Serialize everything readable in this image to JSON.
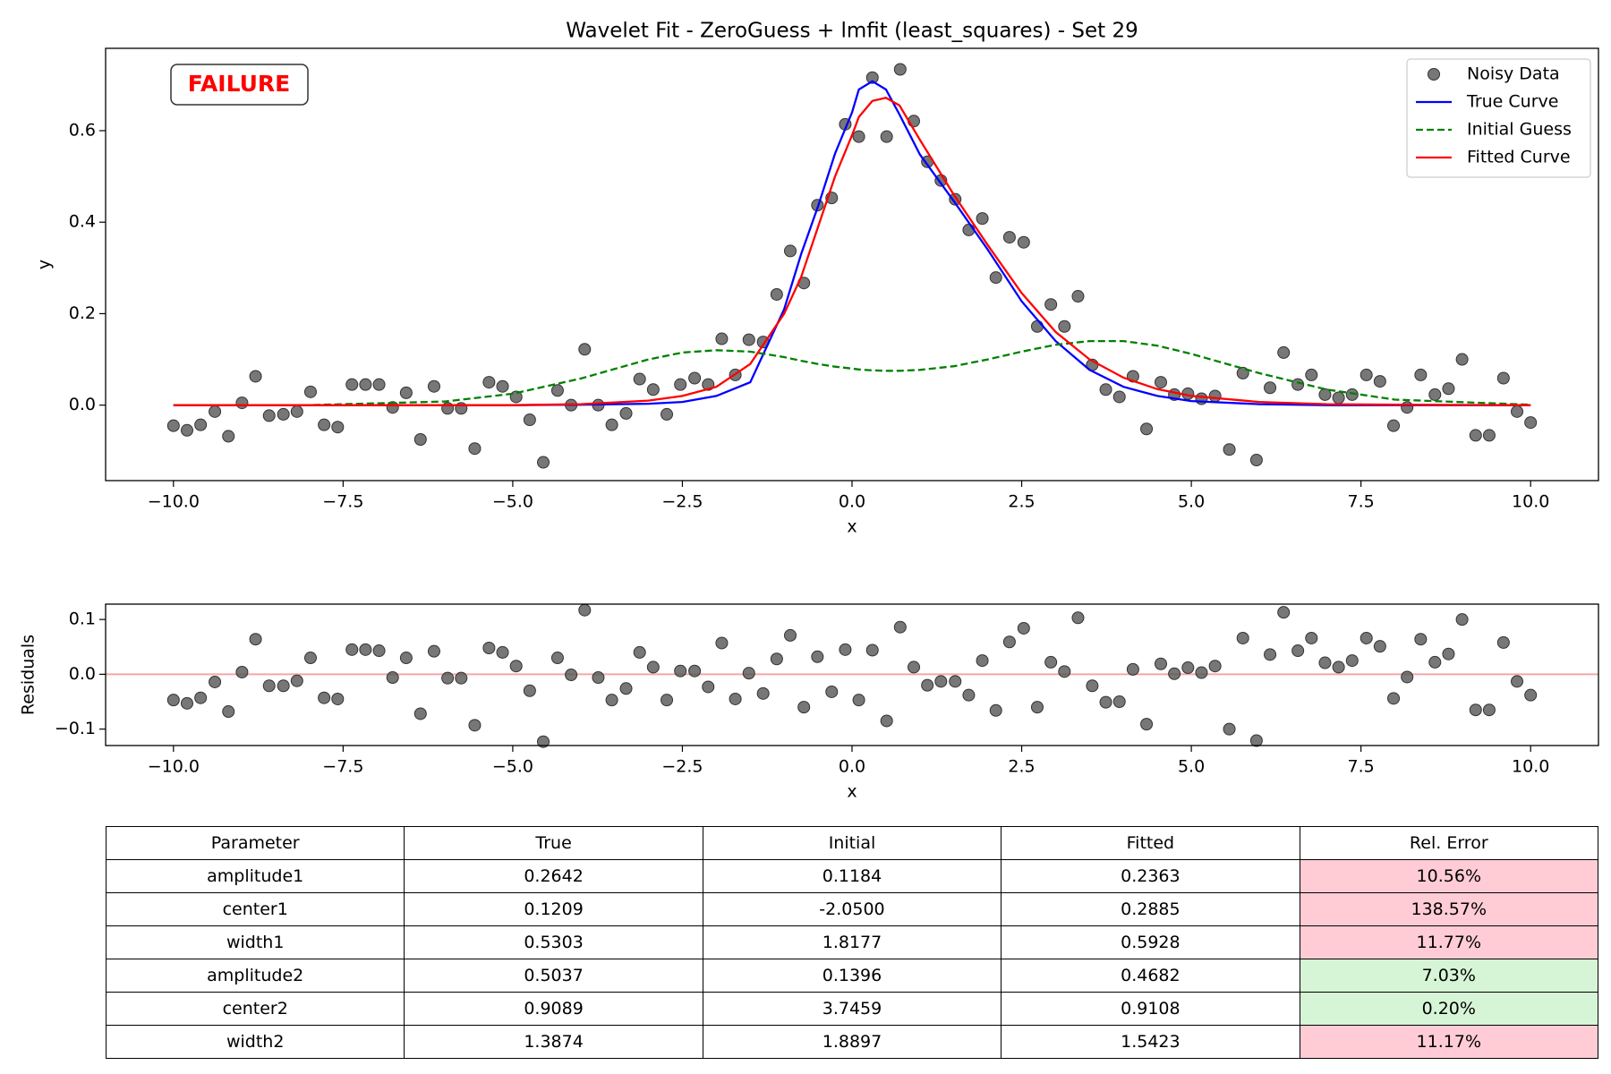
{
  "chart_data": [
    {
      "type": "line",
      "title": "Wavelet Fit - ZeroGuess + lmfit (least_squares) - Set 29",
      "xlabel": "x",
      "ylabel": "y",
      "annotation": {
        "text": "FAILURE",
        "color": "#ff0000"
      },
      "legend": "upper right",
      "xlim": [
        -11,
        11
      ],
      "ylim": [
        -0.165,
        0.78
      ],
      "xticks": [
        {
          "value": -10,
          "label": "−10.0"
        },
        {
          "value": -7.5,
          "label": "−7.5"
        },
        {
          "value": -5,
          "label": "−5.0"
        },
        {
          "value": -2.5,
          "label": "−2.5"
        },
        {
          "value": 0,
          "label": "0.0"
        },
        2.5,
        {
          "value": 5,
          "label": "5.0"
        },
        7.5,
        {
          "value": 10,
          "label": "10.0"
        }
      ],
      "yticks": [
        {
          "value": 0,
          "label": "0.0"
        },
        {
          "value": 0.2,
          "label": "0.2"
        },
        {
          "value": 0.4,
          "label": "0.4"
        },
        {
          "value": 0.6,
          "label": "0.6"
        }
      ],
      "series": [
        {
          "name": "Noisy Data",
          "type": "scatter",
          "color": "#555555",
          "x": [
            -10.0,
            -9.8,
            -9.6,
            -9.39,
            -9.19,
            -8.99,
            -8.79,
            -8.59,
            -8.38,
            -8.18,
            -7.98,
            -7.78,
            -7.58,
            -7.37,
            -7.17,
            -6.97,
            -6.77,
            -6.57,
            -6.36,
            -6.16,
            -5.96,
            -5.76,
            -5.56,
            -5.35,
            -5.15,
            -4.95,
            -4.75,
            -4.55,
            -4.34,
            -4.14,
            -3.94,
            -3.74,
            -3.54,
            -3.33,
            -3.13,
            -2.93,
            -2.73,
            -2.53,
            -2.32,
            -2.12,
            -1.92,
            -1.72,
            -1.52,
            -1.31,
            -1.11,
            -0.91,
            -0.71,
            -0.51,
            -0.3,
            -0.1,
            0.1,
            0.3,
            0.51,
            0.71,
            0.91,
            1.11,
            1.31,
            1.52,
            1.72,
            1.92,
            2.12,
            2.32,
            2.53,
            2.73,
            2.93,
            3.13,
            3.33,
            3.54,
            3.74,
            3.94,
            4.14,
            4.34,
            4.55,
            4.75,
            4.95,
            5.15,
            5.35,
            5.56,
            5.76,
            5.96,
            6.16,
            6.36,
            6.57,
            6.77,
            6.97,
            7.17,
            7.37,
            7.58,
            7.78,
            7.98,
            8.18,
            8.38,
            8.59,
            8.79,
            8.99,
            9.19,
            9.39,
            9.6,
            9.8,
            10.0
          ],
          "values": [
            -0.045,
            -0.055,
            -0.043,
            -0.014,
            -0.068,
            0.005,
            0.063,
            -0.023,
            -0.02,
            -0.014,
            0.029,
            -0.043,
            -0.048,
            0.045,
            0.045,
            0.045,
            -0.005,
            0.027,
            -0.075,
            0.041,
            -0.007,
            -0.007,
            -0.095,
            0.05,
            0.041,
            0.018,
            -0.032,
            -0.125,
            0.032,
            0.0,
            0.122,
            0.0,
            -0.043,
            -0.018,
            0.057,
            0.034,
            -0.02,
            0.045,
            0.059,
            0.045,
            0.145,
            0.066,
            0.143,
            0.138,
            0.242,
            0.337,
            0.267,
            0.437,
            0.453,
            0.614,
            0.587,
            0.716,
            0.587,
            0.734,
            0.621,
            0.532,
            0.491,
            0.45,
            0.383,
            0.408,
            0.279,
            0.367,
            0.356,
            0.172,
            0.22,
            0.172,
            0.238,
            0.088,
            0.034,
            0.018,
            0.063,
            -0.052,
            0.05,
            0.023,
            0.025,
            0.014,
            0.02,
            -0.097,
            0.07,
            -0.12,
            0.038,
            0.115,
            0.045,
            0.066,
            0.023,
            0.016,
            0.023,
            0.066,
            0.052,
            -0.045,
            -0.005,
            0.066,
            0.023,
            0.036,
            0.1,
            -0.066,
            -0.066,
            0.059,
            -0.014,
            -0.038
          ]
        },
        {
          "name": "True Curve",
          "type": "line",
          "color": "#0000ff",
          "style": "solid",
          "x": [
            -10,
            -8,
            -6,
            -5,
            -4,
            -3,
            -2.5,
            -2,
            -1.5,
            -1,
            -0.75,
            -0.5,
            -0.25,
            0,
            0.1,
            0.3,
            0.5,
            0.7,
            1,
            1.5,
            2,
            2.5,
            3,
            3.5,
            4,
            4.5,
            5,
            6,
            7,
            8,
            10
          ],
          "values": [
            0,
            0,
            0,
            0,
            0.001,
            0.003,
            0.007,
            0.02,
            0.05,
            0.21,
            0.33,
            0.435,
            0.55,
            0.64,
            0.69,
            0.708,
            0.69,
            0.635,
            0.548,
            0.446,
            0.34,
            0.227,
            0.14,
            0.077,
            0.04,
            0.02,
            0.009,
            0.002,
            0,
            0,
            0
          ]
        },
        {
          "name": "Initial Guess",
          "type": "line",
          "color": "#008000",
          "style": "dashed",
          "x": [
            -10,
            -8,
            -6,
            -5,
            -4,
            -3,
            -2.5,
            -2,
            -1.5,
            -1,
            -0.75,
            -0.5,
            -0.25,
            0,
            0.1,
            0.3,
            0.5,
            0.7,
            1,
            1.5,
            2,
            2.5,
            3,
            3.5,
            4,
            4.5,
            5,
            6,
            7,
            8,
            10
          ],
          "values": [
            0,
            0.0002,
            0.008,
            0.025,
            0.058,
            0.1,
            0.115,
            0.12,
            0.117,
            0.105,
            0.097,
            0.09,
            0.084,
            0.08,
            0.078,
            0.076,
            0.075,
            0.075,
            0.077,
            0.085,
            0.1,
            0.117,
            0.132,
            0.14,
            0.14,
            0.13,
            0.112,
            0.07,
            0.034,
            0.012,
            0.001
          ]
        },
        {
          "name": "Fitted Curve",
          "type": "line",
          "color": "#ff0000",
          "style": "solid",
          "x": [
            -10,
            -8,
            -6,
            -5,
            -4,
            -3,
            -2.5,
            -2,
            -1.5,
            -1,
            -0.75,
            -0.5,
            -0.25,
            0,
            0.1,
            0.3,
            0.5,
            0.7,
            1,
            1.5,
            2,
            2.5,
            3,
            3.5,
            4,
            4.5,
            5,
            6,
            7,
            8,
            10
          ],
          "values": [
            0,
            0,
            0,
            0,
            0.002,
            0.01,
            0.02,
            0.04,
            0.09,
            0.2,
            0.28,
            0.39,
            0.5,
            0.59,
            0.63,
            0.665,
            0.672,
            0.655,
            0.58,
            0.46,
            0.35,
            0.245,
            0.16,
            0.1,
            0.06,
            0.035,
            0.02,
            0.007,
            0.002,
            0.001,
            0
          ]
        }
      ]
    },
    {
      "type": "scatter",
      "xlabel": "x",
      "ylabel": "Residuals",
      "xlim": [
        -11,
        11
      ],
      "ylim": [
        -0.13,
        0.128
      ],
      "xticks": [
        {
          "value": -10,
          "label": "−10.0"
        },
        {
          "value": -7.5,
          "label": "−7.5"
        },
        {
          "value": -5,
          "label": "−5.0"
        },
        {
          "value": -2.5,
          "label": "−2.5"
        },
        {
          "value": 0,
          "label": "0.0"
        },
        2.5,
        {
          "value": 5,
          "label": "5.0"
        },
        7.5,
        {
          "value": 10,
          "label": "10.0"
        }
      ],
      "yticks": [
        {
          "value": -0.1,
          "label": "−0.1"
        },
        {
          "value": 0,
          "label": "0.0"
        },
        0.1
      ],
      "reference_line": {
        "value": 0,
        "color": "#f4a6a6"
      },
      "series": [
        {
          "name": "Residuals",
          "type": "scatter",
          "color": "#555555",
          "x": [
            -10.0,
            -9.8,
            -9.6,
            -9.39,
            -9.19,
            -8.99,
            -8.79,
            -8.59,
            -8.38,
            -8.18,
            -7.98,
            -7.78,
            -7.58,
            -7.37,
            -7.17,
            -6.97,
            -6.77,
            -6.57,
            -6.36,
            -6.16,
            -5.96,
            -5.76,
            -5.56,
            -5.35,
            -5.15,
            -4.95,
            -4.75,
            -4.55,
            -4.34,
            -4.14,
            -3.94,
            -3.74,
            -3.54,
            -3.33,
            -3.13,
            -2.93,
            -2.73,
            -2.53,
            -2.32,
            -2.12,
            -1.92,
            -1.72,
            -1.52,
            -1.31,
            -1.11,
            -0.91,
            -0.71,
            -0.51,
            -0.3,
            -0.1,
            0.1,
            0.3,
            0.51,
            0.71,
            0.91,
            1.11,
            1.31,
            1.52,
            1.72,
            1.92,
            2.12,
            2.32,
            2.53,
            2.73,
            2.93,
            3.13,
            3.33,
            3.54,
            3.74,
            3.94,
            4.14,
            4.34,
            4.55,
            4.75,
            4.95,
            5.15,
            5.35,
            5.56,
            5.76,
            5.96,
            6.16,
            6.36,
            6.57,
            6.77,
            6.97,
            7.17,
            7.37,
            7.58,
            7.78,
            7.98,
            8.18,
            8.38,
            8.59,
            8.79,
            8.99,
            9.19,
            9.39,
            9.6,
            9.8,
            10.0
          ],
          "values": [
            -0.047,
            -0.053,
            -0.043,
            -0.014,
            -0.068,
            0.004,
            0.064,
            -0.021,
            -0.021,
            -0.012,
            0.03,
            -0.043,
            -0.045,
            0.045,
            0.045,
            0.043,
            -0.006,
            0.03,
            -0.072,
            0.042,
            -0.007,
            -0.007,
            -0.093,
            0.048,
            0.04,
            0.015,
            -0.03,
            -0.123,
            0.03,
            -0.001,
            0.117,
            -0.006,
            -0.047,
            -0.026,
            0.04,
            0.013,
            -0.047,
            0.006,
            0.006,
            -0.023,
            0.057,
            -0.045,
            0.002,
            -0.035,
            0.028,
            0.071,
            -0.06,
            0.032,
            -0.032,
            0.045,
            -0.047,
            0.044,
            -0.085,
            0.086,
            0.013,
            -0.02,
            -0.013,
            -0.013,
            -0.038,
            0.025,
            -0.066,
            0.059,
            0.084,
            -0.06,
            0.022,
            0.005,
            0.103,
            -0.021,
            -0.051,
            -0.05,
            0.009,
            -0.091,
            0.019,
            0.001,
            0.012,
            0.003,
            0.015,
            -0.1,
            0.066,
            -0.121,
            0.036,
            0.113,
            0.043,
            0.066,
            0.021,
            0.013,
            0.025,
            0.066,
            0.051,
            -0.044,
            -0.005,
            0.064,
            0.022,
            0.037,
            0.1,
            -0.065,
            -0.065,
            0.058,
            -0.013,
            -0.038
          ]
        }
      ]
    }
  ],
  "table": {
    "columns": [
      "Parameter",
      "True",
      "Initial",
      "Fitted",
      "Rel. Error"
    ],
    "rows": [
      [
        "amplitude1",
        "0.2642",
        "0.1184",
        "0.2363",
        "10.56%"
      ],
      [
        "center1",
        "0.1209",
        "-2.0500",
        "0.2885",
        "138.57%"
      ],
      [
        "width1",
        "0.5303",
        "1.8177",
        "0.5928",
        "11.77%"
      ],
      [
        "amplitude2",
        "0.5037",
        "0.1396",
        "0.4682",
        "7.03%"
      ],
      [
        "center2",
        "0.9089",
        "3.7459",
        "0.9108",
        "0.20%"
      ],
      [
        "width2",
        "1.3874",
        "1.8897",
        "1.5423",
        "11.17%"
      ]
    ],
    "error_colors": [
      "#ffccd5",
      "#ffccd5",
      "#ffccd5",
      "#d6f5d6",
      "#d6f5d6",
      "#ffccd5"
    ]
  }
}
